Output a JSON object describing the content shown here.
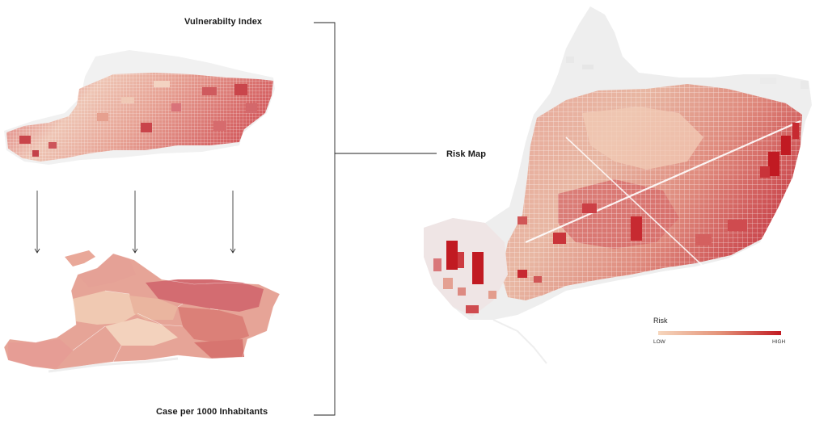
{
  "labels": {
    "vulnerability_index": "Vulnerabilty Index",
    "cases_per_1000": "Case per 1000 Inhabitants",
    "risk_map": "Risk Map"
  },
  "legend": {
    "title": "Risk",
    "low": "LOW",
    "high": "HIGH",
    "color_low": "#f6d6bd",
    "color_mid": "#e49379",
    "color_high": "#c11a22"
  },
  "colors": {
    "city_gray": "#e8e8e8",
    "map_light": "#f5d6c8",
    "map_mid": "#e4a08c",
    "map_dark": "#c95b57",
    "bracket": "#222222"
  }
}
